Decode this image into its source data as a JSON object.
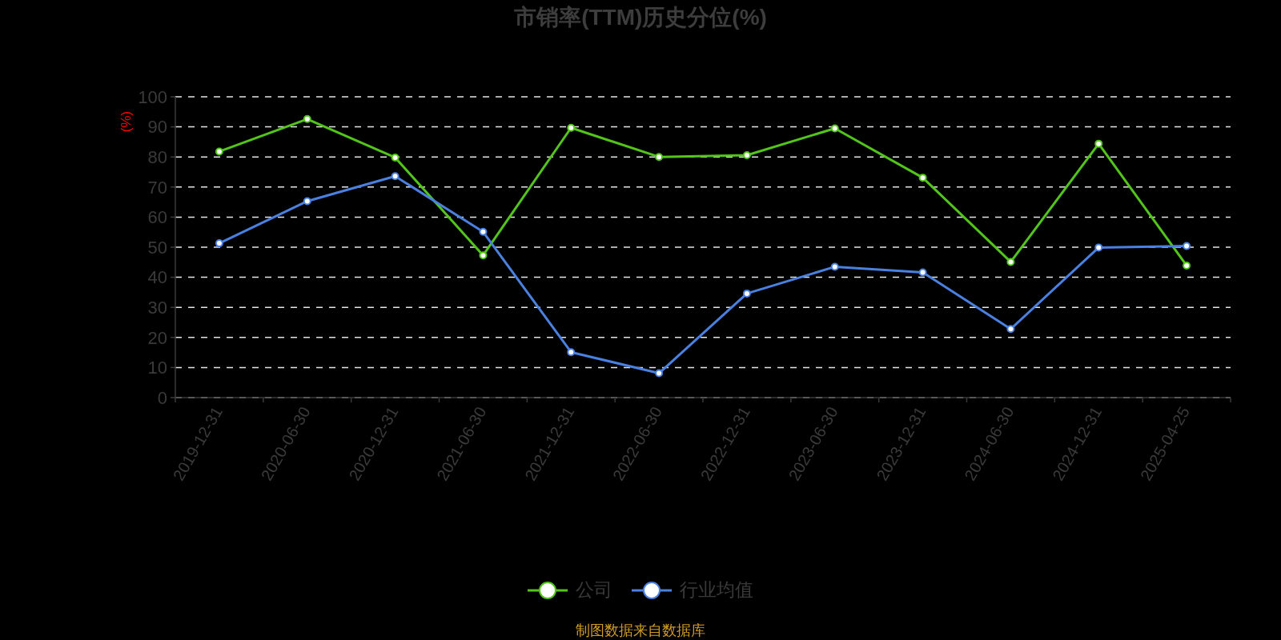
{
  "chart_data": {
    "type": "line",
    "title": "市销率(TTM)历史分位(%)",
    "ylabel": "(%)",
    "categories": [
      "2019-12-31",
      "2020-06-30",
      "2020-12-31",
      "2021-06-30",
      "2021-12-31",
      "2022-06-30",
      "2022-12-31",
      "2023-06-30",
      "2023-12-31",
      "2024-06-30",
      "2024-12-31",
      "2025-04-25"
    ],
    "series": [
      {
        "name": "公司",
        "color": "#52c41a",
        "values": [
          81.8,
          92.6,
          79.8,
          47.3,
          89.7,
          80.0,
          80.6,
          89.5,
          73.1,
          45.1,
          84.4,
          43.9
        ]
      },
      {
        "name": "行业均值",
        "color": "#4a80e0",
        "values": [
          51.3,
          65.3,
          73.6,
          55.1,
          15.1,
          8.1,
          34.6,
          43.5,
          41.6,
          22.8,
          49.9,
          50.4
        ]
      }
    ],
    "ylim": [
      0,
      100
    ],
    "yticks": [
      0,
      10,
      20,
      30,
      40,
      50,
      60,
      70,
      80,
      90,
      100
    ],
    "grid": "y",
    "legend": "bottom",
    "marker": "circle",
    "line_style": "solid",
    "annotations": [
      "制图数据来自数据库"
    ]
  }
}
